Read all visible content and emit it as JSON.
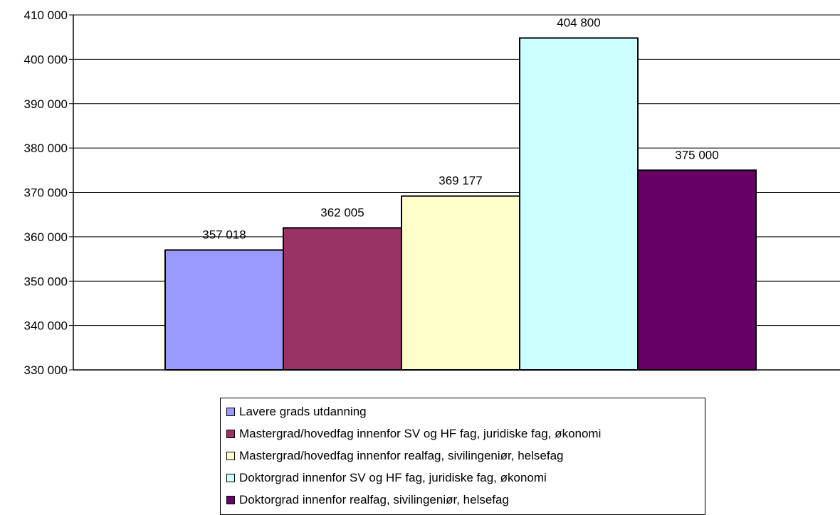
{
  "chart_data": {
    "type": "bar",
    "categories": [
      ""
    ],
    "series": [
      {
        "name": "Lavere grads utdanning",
        "values": [
          357018
        ],
        "label": "357 018",
        "color": "#9999ff"
      },
      {
        "name": "Mastergrad/hovedfag innenfor SV og HF fag, juridiske fag, økonomi",
        "values": [
          362005
        ],
        "label": "362 005",
        "color": "#993366"
      },
      {
        "name": "Mastergrad/hovedfag innenfor realfag, sivilingeniør, helsefag",
        "values": [
          369177
        ],
        "label": "369 177",
        "color": "#ffffcc"
      },
      {
        "name": "Doktorgrad innenfor SV og HF fag, juridiske fag, økonomi",
        "values": [
          404800
        ],
        "label": "404 800",
        "color": "#ccffff"
      },
      {
        "name": "Doktorgrad innenfor realfag, sivilingeniør, helsefag",
        "values": [
          375000
        ],
        "label": "375 000",
        "color": "#660066"
      }
    ],
    "y_ticks": [
      "330 000",
      "340 000",
      "350 000",
      "360 000",
      "370 000",
      "380 000",
      "390 000",
      "400 000",
      "410 000"
    ],
    "ylim": [
      330000,
      410000
    ],
    "grid": true,
    "legend_position": "bottom"
  }
}
